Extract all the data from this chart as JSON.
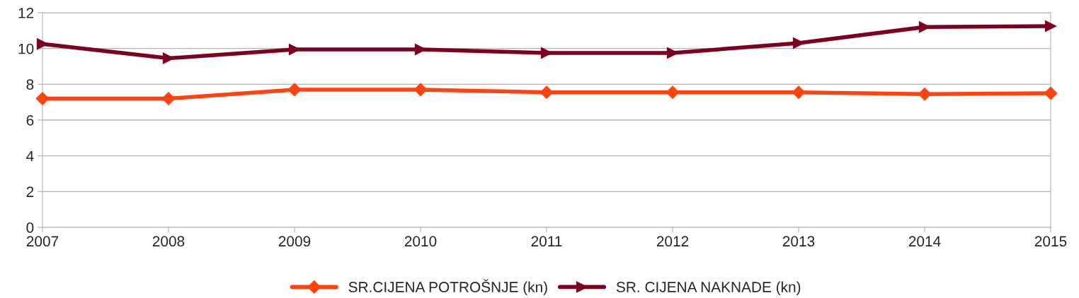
{
  "chart_data": {
    "type": "line",
    "x": [
      2007,
      2008,
      2009,
      2010,
      2011,
      2012,
      2013,
      2014,
      2015
    ],
    "xlim": [
      2007,
      2015
    ],
    "xticks": [
      2007,
      2008,
      2009,
      2010,
      2011,
      2012,
      2013,
      2014,
      2015
    ],
    "ylim": [
      0,
      12
    ],
    "yticks": [
      0,
      2,
      4,
      6,
      8,
      10,
      12
    ],
    "grid": "y",
    "legend": "bottom",
    "series": [
      {
        "name": "SR.CIJENA POTROŠNJE (kn)",
        "color": "#ff420e",
        "marker": "diamond",
        "values": [
          7.2,
          7.2,
          7.7,
          7.7,
          7.55,
          7.55,
          7.55,
          7.45,
          7.5
        ]
      },
      {
        "name": "SR. CIJENA NAKNADE (kn)",
        "color": "#7e0021",
        "marker": "triangle",
        "values": [
          10.25,
          9.45,
          9.95,
          9.95,
          9.75,
          9.75,
          10.3,
          11.2,
          11.25
        ]
      }
    ]
  }
}
